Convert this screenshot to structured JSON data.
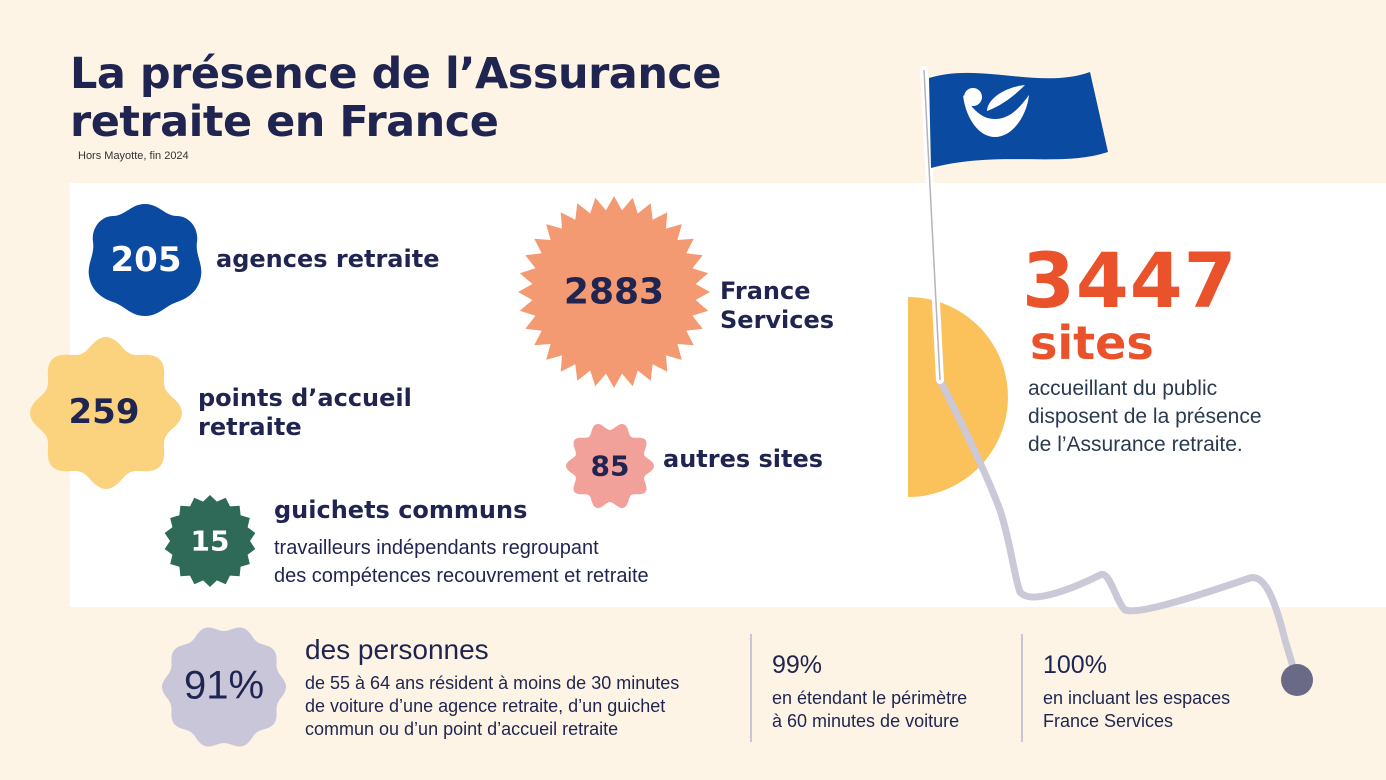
{
  "header": {
    "title_line1": "La présence de l’Assurance",
    "title_line2": "retraite en France",
    "subtitle": "Hors Mayotte, fin 2024"
  },
  "stats": {
    "agences": {
      "value": "205",
      "label": "agences retraite"
    },
    "france_services": {
      "value": "2883",
      "label_line1": "France",
      "label_line2": "Services"
    },
    "points_accueil": {
      "value": "259",
      "label_line1": "points d’accueil",
      "label_line2": "retraite"
    },
    "autres_sites": {
      "value": "85",
      "label": "autres sites"
    },
    "guichets": {
      "value": "15",
      "label": "guichets communs",
      "desc_line1": "travailleurs indépendants regroupant",
      "desc_line2": "des compétences recouvrement et retraite"
    }
  },
  "total": {
    "value": "3447",
    "unit": "sites",
    "desc_line1": "accueillant du public",
    "desc_line2": "disposent de la présence",
    "desc_line3": "de l’Assurance retraite."
  },
  "bottom": {
    "pct1": {
      "value": "91%",
      "title": "des personnes",
      "line1": "de 55 à 64 ans résident à moins de 30 minutes",
      "line2": "de voiture d’une agence retraite, d’un guichet",
      "line3": "commun ou d’un point d’accueil retraite"
    },
    "pct2": {
      "value": "99%",
      "line1": "en étendant le périmètre",
      "line2": "à 60 minutes de voiture"
    },
    "pct3": {
      "value": "100%",
      "line1": "en incluant les espaces",
      "line2": "France Services"
    }
  },
  "colors": {
    "navy": "#1f2550",
    "blue_badge": "#0a4aa0",
    "salmon_badge": "#f39a72",
    "yellow_badge": "#fbd27e",
    "pink_badge": "#f2a09a",
    "green_badge": "#2f6a58",
    "lavender_badge": "#c8c6d8",
    "orange_accent": "#e9522b",
    "semicircle": "#fbc15a"
  },
  "icons": {
    "flag": "flag-icon",
    "logo": "assurance-retraite-logo-icon"
  }
}
